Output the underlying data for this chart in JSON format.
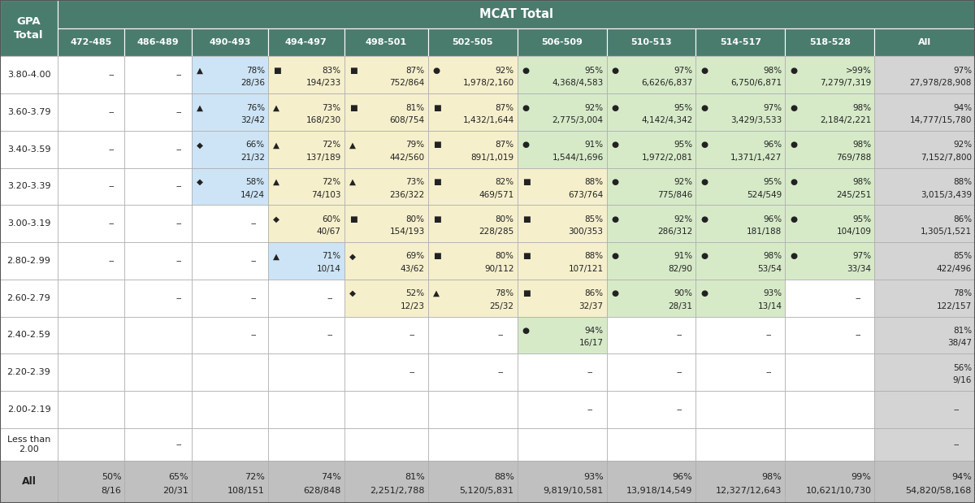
{
  "col_headers": [
    "472-485",
    "486-489",
    "490-493",
    "494-497",
    "498-501",
    "502-505",
    "506-509",
    "510-513",
    "514-517",
    "518-528",
    "All"
  ],
  "row_headers": [
    "3.80-4.00",
    "3.60-3.79",
    "3.40-3.59",
    "3.20-3.39",
    "3.00-3.19",
    "2.80-2.99",
    "2.60-2.79",
    "2.40-2.59",
    "2.20-2.39",
    "2.00-2.19",
    "Less than\n2.00",
    "All"
  ],
  "cells": [
    [
      [
        "--",
        ""
      ],
      [
        "--",
        ""
      ],
      [
        "▲",
        "78%",
        "28/36"
      ],
      [
        "■",
        "83%",
        "194/233"
      ],
      [
        "■",
        "87%",
        "752/864"
      ],
      [
        "●",
        "92%",
        "1,978/2,160"
      ],
      [
        "●",
        "95%",
        "4,368/4,583"
      ],
      [
        "●",
        "97%",
        "6,626/6,837"
      ],
      [
        "●",
        "98%",
        "6,750/6,871"
      ],
      [
        "●",
        ">99%",
        "7,279/7,319"
      ],
      [
        "",
        "97%",
        "27,978/28,908"
      ]
    ],
    [
      [
        "--",
        ""
      ],
      [
        "--",
        ""
      ],
      [
        "▲",
        "76%",
        "32/42"
      ],
      [
        "▲",
        "73%",
        "168/230"
      ],
      [
        "■",
        "81%",
        "608/754"
      ],
      [
        "■",
        "87%",
        "1,432/1,644"
      ],
      [
        "●",
        "92%",
        "2,775/3,004"
      ],
      [
        "●",
        "95%",
        "4,142/4,342"
      ],
      [
        "●",
        "97%",
        "3,429/3,533"
      ],
      [
        "●",
        "98%",
        "2,184/2,221"
      ],
      [
        "",
        "94%",
        "14,777/15,780"
      ]
    ],
    [
      [
        "--",
        ""
      ],
      [
        "--",
        ""
      ],
      [
        "◆",
        "66%",
        "21/32"
      ],
      [
        "▲",
        "72%",
        "137/189"
      ],
      [
        "▲",
        "79%",
        "442/560"
      ],
      [
        "■",
        "87%",
        "891/1,019"
      ],
      [
        "●",
        "91%",
        "1,544/1,696"
      ],
      [
        "●",
        "95%",
        "1,972/2,081"
      ],
      [
        "●",
        "96%",
        "1,371/1,427"
      ],
      [
        "●",
        "98%",
        "769/788"
      ],
      [
        "",
        "92%",
        "7,152/7,800"
      ]
    ],
    [
      [
        "--",
        ""
      ],
      [
        "--",
        ""
      ],
      [
        "◆",
        "58%",
        "14/24"
      ],
      [
        "▲",
        "72%",
        "74/103"
      ],
      [
        "▲",
        "73%",
        "236/322"
      ],
      [
        "■",
        "82%",
        "469/571"
      ],
      [
        "■",
        "88%",
        "673/764"
      ],
      [
        "●",
        "92%",
        "775/846"
      ],
      [
        "●",
        "95%",
        "524/549"
      ],
      [
        "●",
        "98%",
        "245/251"
      ],
      [
        "",
        "88%",
        "3,015/3,439"
      ]
    ],
    [
      [
        "--",
        ""
      ],
      [
        "--",
        ""
      ],
      [
        "--",
        ""
      ],
      [
        "◆",
        "60%",
        "40/67"
      ],
      [
        "■",
        "80%",
        "154/193"
      ],
      [
        "■",
        "80%",
        "228/285"
      ],
      [
        "■",
        "85%",
        "300/353"
      ],
      [
        "●",
        "92%",
        "286/312"
      ],
      [
        "●",
        "96%",
        "181/188"
      ],
      [
        "●",
        "95%",
        "104/109"
      ],
      [
        "",
        "86%",
        "1,305/1,521"
      ]
    ],
    [
      [
        "--",
        ""
      ],
      [
        "--",
        ""
      ],
      [
        "--",
        ""
      ],
      [
        "▲",
        "71%",
        "10/14"
      ],
      [
        "◆",
        "69%",
        "43/62"
      ],
      [
        "■",
        "80%",
        "90/112"
      ],
      [
        "■",
        "88%",
        "107/121"
      ],
      [
        "●",
        "91%",
        "82/90"
      ],
      [
        "●",
        "98%",
        "53/54"
      ],
      [
        "●",
        "97%",
        "33/34"
      ],
      [
        "",
        "85%",
        "422/496"
      ]
    ],
    [
      [
        "",
        ""
      ],
      [
        "--",
        ""
      ],
      [
        "--",
        ""
      ],
      [
        "--",
        ""
      ],
      [
        "◆",
        "52%",
        "12/23"
      ],
      [
        "▲",
        "78%",
        "25/32"
      ],
      [
        "■",
        "86%",
        "32/37"
      ],
      [
        "●",
        "90%",
        "28/31"
      ],
      [
        "●",
        "93%",
        "13/14"
      ],
      [
        "--",
        ""
      ],
      [
        "",
        "78%",
        "122/157"
      ]
    ],
    [
      [
        "",
        ""
      ],
      [
        "",
        ""
      ],
      [
        "--",
        ""
      ],
      [
        "--",
        ""
      ],
      [
        "--",
        ""
      ],
      [
        "--",
        ""
      ],
      [
        "●",
        "94%",
        "16/17"
      ],
      [
        "--",
        ""
      ],
      [
        "--",
        ""
      ],
      [
        "--",
        ""
      ],
      [
        "",
        "81%",
        "38/47"
      ]
    ],
    [
      [
        "",
        ""
      ],
      [
        "",
        ""
      ],
      [
        "",
        ""
      ],
      [
        "",
        ""
      ],
      [
        "--",
        ""
      ],
      [
        "--",
        ""
      ],
      [
        "--",
        ""
      ],
      [
        "--",
        ""
      ],
      [
        "--",
        ""
      ],
      [
        "",
        ""
      ],
      [
        "",
        "56%",
        "9/16"
      ]
    ],
    [
      [
        "",
        ""
      ],
      [
        "",
        ""
      ],
      [
        "",
        ""
      ],
      [
        "",
        ""
      ],
      [
        "",
        ""
      ],
      [
        "",
        ""
      ],
      [
        "--",
        ""
      ],
      [
        "--",
        ""
      ],
      [
        "",
        ""
      ],
      [
        "",
        ""
      ],
      [
        "--",
        ""
      ]
    ],
    [
      [
        "",
        ""
      ],
      [
        "--",
        ""
      ],
      [
        "",
        ""
      ],
      [
        "",
        ""
      ],
      [
        "",
        ""
      ],
      [
        "",
        ""
      ],
      [
        "",
        ""
      ],
      [
        "",
        ""
      ],
      [
        "",
        ""
      ],
      [
        "",
        ""
      ],
      [
        "--",
        ""
      ]
    ],
    [
      [
        "",
        "50%",
        "8/16"
      ],
      [
        "",
        "65%",
        "20/31"
      ],
      [
        "",
        "72%",
        "108/151"
      ],
      [
        "",
        "74%",
        "628/848"
      ],
      [
        "",
        "81%",
        "2,251/2,788"
      ],
      [
        "",
        "88%",
        "5,120/5,831"
      ],
      [
        "",
        "93%",
        "9,819/10,581"
      ],
      [
        "",
        "96%",
        "13,918/14,549"
      ],
      [
        "",
        "98%",
        "12,327/12,643"
      ],
      [
        "",
        "99%",
        "10,621/10,730"
      ],
      [
        "",
        "94%",
        "54,820/58,168"
      ]
    ]
  ],
  "cell_colors": [
    [
      "#ffffff",
      "#ffffff",
      "#cce4f5",
      "#f5efcc",
      "#f5efcc",
      "#f5efcc",
      "#d6eac8",
      "#d6eac8",
      "#d6eac8",
      "#d6eac8",
      "#d4d4d4"
    ],
    [
      "#ffffff",
      "#ffffff",
      "#cce4f5",
      "#f5efcc",
      "#f5efcc",
      "#f5efcc",
      "#d6eac8",
      "#d6eac8",
      "#d6eac8",
      "#d6eac8",
      "#d4d4d4"
    ],
    [
      "#ffffff",
      "#ffffff",
      "#cce4f5",
      "#f5efcc",
      "#f5efcc",
      "#f5efcc",
      "#d6eac8",
      "#d6eac8",
      "#d6eac8",
      "#d6eac8",
      "#d4d4d4"
    ],
    [
      "#ffffff",
      "#ffffff",
      "#cce4f5",
      "#f5efcc",
      "#f5efcc",
      "#f5efcc",
      "#f5efcc",
      "#d6eac8",
      "#d6eac8",
      "#d6eac8",
      "#d4d4d4"
    ],
    [
      "#ffffff",
      "#ffffff",
      "#ffffff",
      "#f5efcc",
      "#f5efcc",
      "#f5efcc",
      "#f5efcc",
      "#d6eac8",
      "#d6eac8",
      "#d6eac8",
      "#d4d4d4"
    ],
    [
      "#ffffff",
      "#ffffff",
      "#ffffff",
      "#cce4f5",
      "#f5efcc",
      "#f5efcc",
      "#f5efcc",
      "#d6eac8",
      "#d6eac8",
      "#d6eac8",
      "#d4d4d4"
    ],
    [
      "#ffffff",
      "#ffffff",
      "#ffffff",
      "#ffffff",
      "#f5efcc",
      "#f5efcc",
      "#f5efcc",
      "#d6eac8",
      "#d6eac8",
      "#ffffff",
      "#d4d4d4"
    ],
    [
      "#ffffff",
      "#ffffff",
      "#ffffff",
      "#ffffff",
      "#ffffff",
      "#ffffff",
      "#d6eac8",
      "#ffffff",
      "#ffffff",
      "#ffffff",
      "#d4d4d4"
    ],
    [
      "#ffffff",
      "#ffffff",
      "#ffffff",
      "#ffffff",
      "#ffffff",
      "#ffffff",
      "#ffffff",
      "#ffffff",
      "#ffffff",
      "#ffffff",
      "#d4d4d4"
    ],
    [
      "#ffffff",
      "#ffffff",
      "#ffffff",
      "#ffffff",
      "#ffffff",
      "#ffffff",
      "#ffffff",
      "#ffffff",
      "#ffffff",
      "#ffffff",
      "#d4d4d4"
    ],
    [
      "#ffffff",
      "#ffffff",
      "#ffffff",
      "#ffffff",
      "#ffffff",
      "#ffffff",
      "#ffffff",
      "#ffffff",
      "#ffffff",
      "#ffffff",
      "#d4d4d4"
    ],
    [
      "#c0c0c0",
      "#c0c0c0",
      "#c0c0c0",
      "#c0c0c0",
      "#c0c0c0",
      "#c0c0c0",
      "#c0c0c0",
      "#c0c0c0",
      "#c0c0c0",
      "#c0c0c0",
      "#c0c0c0"
    ]
  ],
  "header_dark": "#4a7c6e",
  "header_text": "#ffffff",
  "border_color": "#aaaaaa",
  "text_color": "#222222"
}
